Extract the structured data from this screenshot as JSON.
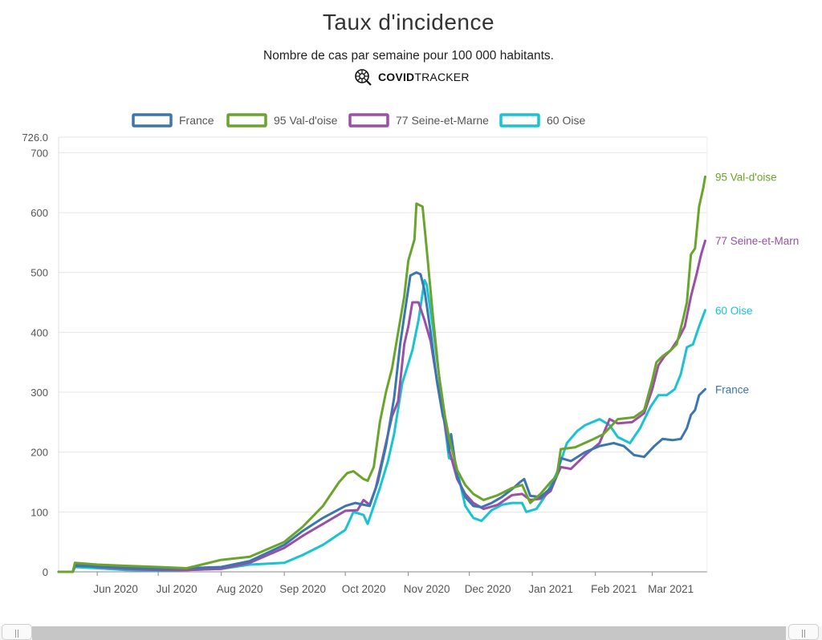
{
  "header": {
    "title": "Taux d'incidence",
    "subtitle": "Nombre de cas par semaine pour 100 000 habitants.",
    "brand_bold": "COVID",
    "brand_light": "TRACKER",
    "brand_icon": "covidtracker-logo-icon"
  },
  "chart_data": {
    "type": "line",
    "title": "Taux d'incidence",
    "subtitle": "Nombre de cas par semaine pour 100 000 habitants.",
    "xlabel": "",
    "ylabel": "",
    "ylim": [
      0,
      726.0
    ],
    "y_ticks": [
      "0",
      "100",
      "200",
      "300",
      "400",
      "500",
      "600",
      "700"
    ],
    "y_max_label": "726.0",
    "x_range": [
      "2020-05-13",
      "2021-03-28"
    ],
    "x_ticks": [
      {
        "label": "Jun 2020",
        "date": "2020-06-01"
      },
      {
        "label": "Jul 2020",
        "date": "2020-07-01"
      },
      {
        "label": "Aug 2020",
        "date": "2020-08-01"
      },
      {
        "label": "Sep 2020",
        "date": "2020-09-01"
      },
      {
        "label": "Oct 2020",
        "date": "2020-10-01"
      },
      {
        "label": "Nov 2020",
        "date": "2020-11-01"
      },
      {
        "label": "Dec 2020",
        "date": "2020-12-01"
      },
      {
        "label": "Jan 2021",
        "date": "2021-01-01"
      },
      {
        "label": "Feb 2021",
        "date": "2021-02-01"
      },
      {
        "label": "Mar 2021",
        "date": "2021-03-01"
      }
    ],
    "grid": true,
    "legend_position": "top",
    "series": [
      {
        "name": "France",
        "end_label": "France",
        "color": "#3b76ae",
        "points": [
          [
            "2020-05-13",
            0
          ],
          [
            "2020-05-20",
            0
          ],
          [
            "2020-05-21",
            10
          ],
          [
            "2020-06-01",
            9
          ],
          [
            "2020-06-15",
            7
          ],
          [
            "2020-07-01",
            5
          ],
          [
            "2020-07-15",
            6
          ],
          [
            "2020-08-01",
            8
          ],
          [
            "2020-08-15",
            18
          ],
          [
            "2020-09-01",
            45
          ],
          [
            "2020-09-10",
            68
          ],
          [
            "2020-09-20",
            90
          ],
          [
            "2020-10-01",
            110
          ],
          [
            "2020-10-06",
            115
          ],
          [
            "2020-10-10",
            112
          ],
          [
            "2020-10-13",
            110
          ],
          [
            "2020-10-17",
            150
          ],
          [
            "2020-10-21",
            210
          ],
          [
            "2020-10-25",
            290
          ],
          [
            "2020-10-28",
            380
          ],
          [
            "2020-10-31",
            450
          ],
          [
            "2020-11-02",
            495
          ],
          [
            "2020-11-05",
            500
          ],
          [
            "2020-11-07",
            497
          ],
          [
            "2020-11-09",
            470
          ],
          [
            "2020-11-12",
            400
          ],
          [
            "2020-11-15",
            320
          ],
          [
            "2020-11-18",
            260
          ],
          [
            "2020-11-20",
            240
          ],
          [
            "2020-11-21",
            200
          ],
          [
            "2020-11-22",
            230
          ],
          [
            "2020-11-25",
            160
          ],
          [
            "2020-11-29",
            125
          ],
          [
            "2020-12-03",
            110
          ],
          [
            "2020-12-07",
            108
          ],
          [
            "2020-12-12",
            115
          ],
          [
            "2020-12-17",
            125
          ],
          [
            "2020-12-22",
            138
          ],
          [
            "2020-12-26",
            150
          ],
          [
            "2020-12-28",
            155
          ],
          [
            "2020-12-31",
            127
          ],
          [
            "2021-01-05",
            125
          ],
          [
            "2021-01-10",
            140
          ],
          [
            "2021-01-13",
            160
          ],
          [
            "2021-01-15",
            190
          ],
          [
            "2021-01-20",
            185
          ],
          [
            "2021-01-27",
            200
          ],
          [
            "2021-02-03",
            210
          ],
          [
            "2021-02-10",
            215
          ],
          [
            "2021-02-15",
            210
          ],
          [
            "2021-02-20",
            195
          ],
          [
            "2021-02-25",
            192
          ],
          [
            "2021-03-02",
            210
          ],
          [
            "2021-03-06",
            222
          ],
          [
            "2021-03-11",
            220
          ],
          [
            "2021-03-15",
            222
          ],
          [
            "2021-03-18",
            240
          ],
          [
            "2021-03-20",
            262
          ],
          [
            "2021-03-22",
            270
          ],
          [
            "2021-03-24",
            295
          ],
          [
            "2021-03-27",
            305
          ]
        ]
      },
      {
        "name": "95 Val-d'oise",
        "end_label": "95 Val-d'oise",
        "color": "#6aa52b",
        "points": [
          [
            "2020-05-13",
            0
          ],
          [
            "2020-05-20",
            0
          ],
          [
            "2020-05-21",
            15
          ],
          [
            "2020-06-01",
            12
          ],
          [
            "2020-06-15",
            10
          ],
          [
            "2020-07-01",
            8
          ],
          [
            "2020-07-15",
            6
          ],
          [
            "2020-08-01",
            20
          ],
          [
            "2020-08-15",
            25
          ],
          [
            "2020-09-01",
            50
          ],
          [
            "2020-09-10",
            75
          ],
          [
            "2020-09-20",
            110
          ],
          [
            "2020-09-28",
            150
          ],
          [
            "2020-10-02",
            165
          ],
          [
            "2020-10-05",
            168
          ],
          [
            "2020-10-10",
            155
          ],
          [
            "2020-10-12",
            152
          ],
          [
            "2020-10-15",
            175
          ],
          [
            "2020-10-18",
            250
          ],
          [
            "2020-10-21",
            300
          ],
          [
            "2020-10-24",
            340
          ],
          [
            "2020-10-27",
            400
          ],
          [
            "2020-10-30",
            460
          ],
          [
            "2020-11-01",
            520
          ],
          [
            "2020-11-04",
            555
          ],
          [
            "2020-11-05",
            615
          ],
          [
            "2020-11-08",
            610
          ],
          [
            "2020-11-10",
            540
          ],
          [
            "2020-11-13",
            430
          ],
          [
            "2020-11-16",
            330
          ],
          [
            "2020-11-19",
            260
          ],
          [
            "2020-11-21",
            225
          ],
          [
            "2020-11-25",
            170
          ],
          [
            "2020-11-29",
            145
          ],
          [
            "2020-12-03",
            130
          ],
          [
            "2020-12-08",
            120
          ],
          [
            "2020-12-15",
            128
          ],
          [
            "2020-12-22",
            140
          ],
          [
            "2020-12-27",
            145
          ],
          [
            "2020-12-31",
            115
          ],
          [
            "2021-01-05",
            130
          ],
          [
            "2021-01-10",
            150
          ],
          [
            "2021-01-13",
            160
          ],
          [
            "2021-01-15",
            205
          ],
          [
            "2021-01-22",
            208
          ],
          [
            "2021-01-30",
            220
          ],
          [
            "2021-02-05",
            230
          ],
          [
            "2021-02-12",
            255
          ],
          [
            "2021-02-20",
            258
          ],
          [
            "2021-02-25",
            270
          ],
          [
            "2021-03-01",
            320
          ],
          [
            "2021-03-03",
            350
          ],
          [
            "2021-03-06",
            360
          ],
          [
            "2021-03-10",
            370
          ],
          [
            "2021-03-13",
            380
          ],
          [
            "2021-03-16",
            420
          ],
          [
            "2021-03-18",
            450
          ],
          [
            "2021-03-20",
            530
          ],
          [
            "2021-03-22",
            540
          ],
          [
            "2021-03-24",
            610
          ],
          [
            "2021-03-26",
            640
          ],
          [
            "2021-03-27",
            660
          ]
        ]
      },
      {
        "name": "77 Seine-et-Marne",
        "end_label": "77 Seine-et-Marn",
        "color": "#9b4fa6",
        "points": [
          [
            "2020-05-13",
            0
          ],
          [
            "2020-05-20",
            0
          ],
          [
            "2020-05-21",
            12
          ],
          [
            "2020-06-01",
            8
          ],
          [
            "2020-06-15",
            5
          ],
          [
            "2020-07-01",
            3
          ],
          [
            "2020-07-15",
            3
          ],
          [
            "2020-08-01",
            5
          ],
          [
            "2020-08-15",
            15
          ],
          [
            "2020-09-01",
            40
          ],
          [
            "2020-09-10",
            60
          ],
          [
            "2020-09-20",
            80
          ],
          [
            "2020-10-01",
            102
          ],
          [
            "2020-10-07",
            103
          ],
          [
            "2020-10-10",
            120
          ],
          [
            "2020-10-13",
            112
          ],
          [
            "2020-10-16",
            140
          ],
          [
            "2020-10-20",
            200
          ],
          [
            "2020-10-24",
            260
          ],
          [
            "2020-10-27",
            285
          ],
          [
            "2020-10-30",
            380
          ],
          [
            "2020-11-01",
            410
          ],
          [
            "2020-11-03",
            450
          ],
          [
            "2020-11-06",
            450
          ],
          [
            "2020-11-09",
            420
          ],
          [
            "2020-11-12",
            385
          ],
          [
            "2020-11-16",
            300
          ],
          [
            "2020-11-19",
            245
          ],
          [
            "2020-11-21",
            205
          ],
          [
            "2020-11-25",
            155
          ],
          [
            "2020-11-29",
            130
          ],
          [
            "2020-12-03",
            115
          ],
          [
            "2020-12-08",
            105
          ],
          [
            "2020-12-15",
            112
          ],
          [
            "2020-12-22",
            128
          ],
          [
            "2020-12-27",
            130
          ],
          [
            "2020-12-31",
            120
          ],
          [
            "2021-01-05",
            122
          ],
          [
            "2021-01-10",
            135
          ],
          [
            "2021-01-13",
            160
          ],
          [
            "2021-01-15",
            175
          ],
          [
            "2021-01-20",
            172
          ],
          [
            "2021-01-27",
            195
          ],
          [
            "2021-02-03",
            215
          ],
          [
            "2021-02-08",
            255
          ],
          [
            "2021-02-12",
            248
          ],
          [
            "2021-02-19",
            250
          ],
          [
            "2021-02-25",
            265
          ],
          [
            "2021-03-01",
            305
          ],
          [
            "2021-03-04",
            345
          ],
          [
            "2021-03-07",
            360
          ],
          [
            "2021-03-10",
            370
          ],
          [
            "2021-03-14",
            390
          ],
          [
            "2021-03-17",
            410
          ],
          [
            "2021-03-20",
            460
          ],
          [
            "2021-03-23",
            500
          ],
          [
            "2021-03-25",
            530
          ],
          [
            "2021-03-27",
            553
          ]
        ]
      },
      {
        "name": "60 Oise",
        "end_label": "60 Oise",
        "color": "#19c3d2",
        "points": [
          [
            "2020-05-13",
            0
          ],
          [
            "2020-05-20",
            0
          ],
          [
            "2020-05-21",
            8
          ],
          [
            "2020-06-01",
            6
          ],
          [
            "2020-06-15",
            3
          ],
          [
            "2020-07-01",
            2
          ],
          [
            "2020-07-15",
            3
          ],
          [
            "2020-08-01",
            5
          ],
          [
            "2020-08-15",
            12
          ],
          [
            "2020-09-01",
            15
          ],
          [
            "2020-09-10",
            28
          ],
          [
            "2020-09-20",
            45
          ],
          [
            "2020-10-01",
            70
          ],
          [
            "2020-10-05",
            100
          ],
          [
            "2020-10-10",
            95
          ],
          [
            "2020-10-12",
            80
          ],
          [
            "2020-10-15",
            110
          ],
          [
            "2020-10-18",
            140
          ],
          [
            "2020-10-22",
            185
          ],
          [
            "2020-10-25",
            230
          ],
          [
            "2020-10-29",
            315
          ],
          [
            "2020-11-03",
            370
          ],
          [
            "2020-11-06",
            420
          ],
          [
            "2020-11-09",
            487
          ],
          [
            "2020-11-10",
            480
          ],
          [
            "2020-11-13",
            410
          ],
          [
            "2020-11-16",
            330
          ],
          [
            "2020-11-18",
            270
          ],
          [
            "2020-11-21",
            190
          ],
          [
            "2020-11-24",
            185
          ],
          [
            "2020-11-29",
            110
          ],
          [
            "2020-12-03",
            90
          ],
          [
            "2020-12-07",
            85
          ],
          [
            "2020-12-12",
            103
          ],
          [
            "2020-12-17",
            112
          ],
          [
            "2020-12-22",
            115
          ],
          [
            "2020-12-27",
            115
          ],
          [
            "2020-12-29",
            100
          ],
          [
            "2021-01-03",
            105
          ],
          [
            "2021-01-08",
            130
          ],
          [
            "2021-01-13",
            165
          ],
          [
            "2021-01-18",
            215
          ],
          [
            "2021-01-23",
            235
          ],
          [
            "2021-01-27",
            245
          ],
          [
            "2021-02-03",
            255
          ],
          [
            "2021-02-08",
            245
          ],
          [
            "2021-02-12",
            225
          ],
          [
            "2021-02-18",
            215
          ],
          [
            "2021-02-23",
            240
          ],
          [
            "2021-02-28",
            275
          ],
          [
            "2021-03-04",
            295
          ],
          [
            "2021-03-08",
            295
          ],
          [
            "2021-03-12",
            305
          ],
          [
            "2021-03-15",
            330
          ],
          [
            "2021-03-18",
            375
          ],
          [
            "2021-03-21",
            380
          ],
          [
            "2021-03-24",
            410
          ],
          [
            "2021-03-27",
            437
          ]
        ]
      }
    ]
  },
  "scrollbar": {
    "present": true
  }
}
